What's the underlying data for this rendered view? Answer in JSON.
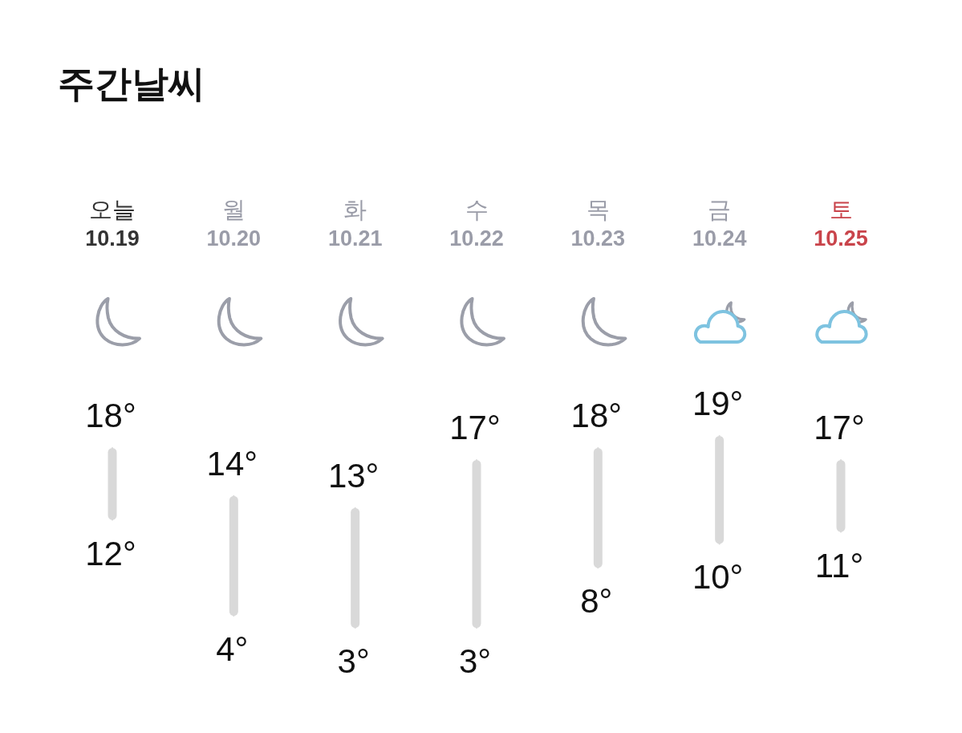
{
  "chart_data": {
    "type": "candlestick",
    "title": "주간날씨",
    "categories": [
      "오늘 10.19",
      "월 10.20",
      "화 10.21",
      "수 10.22",
      "목 10.23",
      "금 10.24",
      "토 10.25"
    ],
    "ohlc": [
      [
        12,
        18,
        12,
        18
      ],
      [
        4,
        14,
        4,
        14
      ],
      [
        3,
        13,
        3,
        13
      ],
      [
        3,
        17,
        3,
        17
      ],
      [
        8,
        18,
        8,
        18
      ],
      [
        10,
        19,
        10,
        19
      ],
      [
        11,
        17,
        11,
        17
      ]
    ],
    "color": "#d9d9d9",
    "annotations": [
      {
        "text": "18°",
        "x": "오늘 10.19",
        "y": 18
      },
      {
        "text": "12°",
        "x": "오늘 10.19",
        "y": 12
      },
      {
        "text": "14°",
        "x": "월 10.20",
        "y": 14
      },
      {
        "text": "4°",
        "x": "월 10.20",
        "y": 4
      },
      {
        "text": "13°",
        "x": "화 10.21",
        "y": 13
      },
      {
        "text": "3°",
        "x": "화 10.21",
        "y": 3
      },
      {
        "text": "17°",
        "x": "수 10.22",
        "y": 17
      },
      {
        "text": "3°",
        "x": "수 10.22",
        "y": 3
      },
      {
        "text": "18°",
        "x": "목 10.23",
        "y": 18
      },
      {
        "text": "8°",
        "x": "목 10.23",
        "y": 8
      },
      {
        "text": "19°",
        "x": "금 10.24",
        "y": 19
      },
      {
        "text": "10°",
        "x": "금 10.24",
        "y": 10
      },
      {
        "text": "17°",
        "x": "토 10.25",
        "y": 17
      },
      {
        "text": "11°",
        "x": "토 10.25",
        "y": 11
      }
    ]
  }
}
